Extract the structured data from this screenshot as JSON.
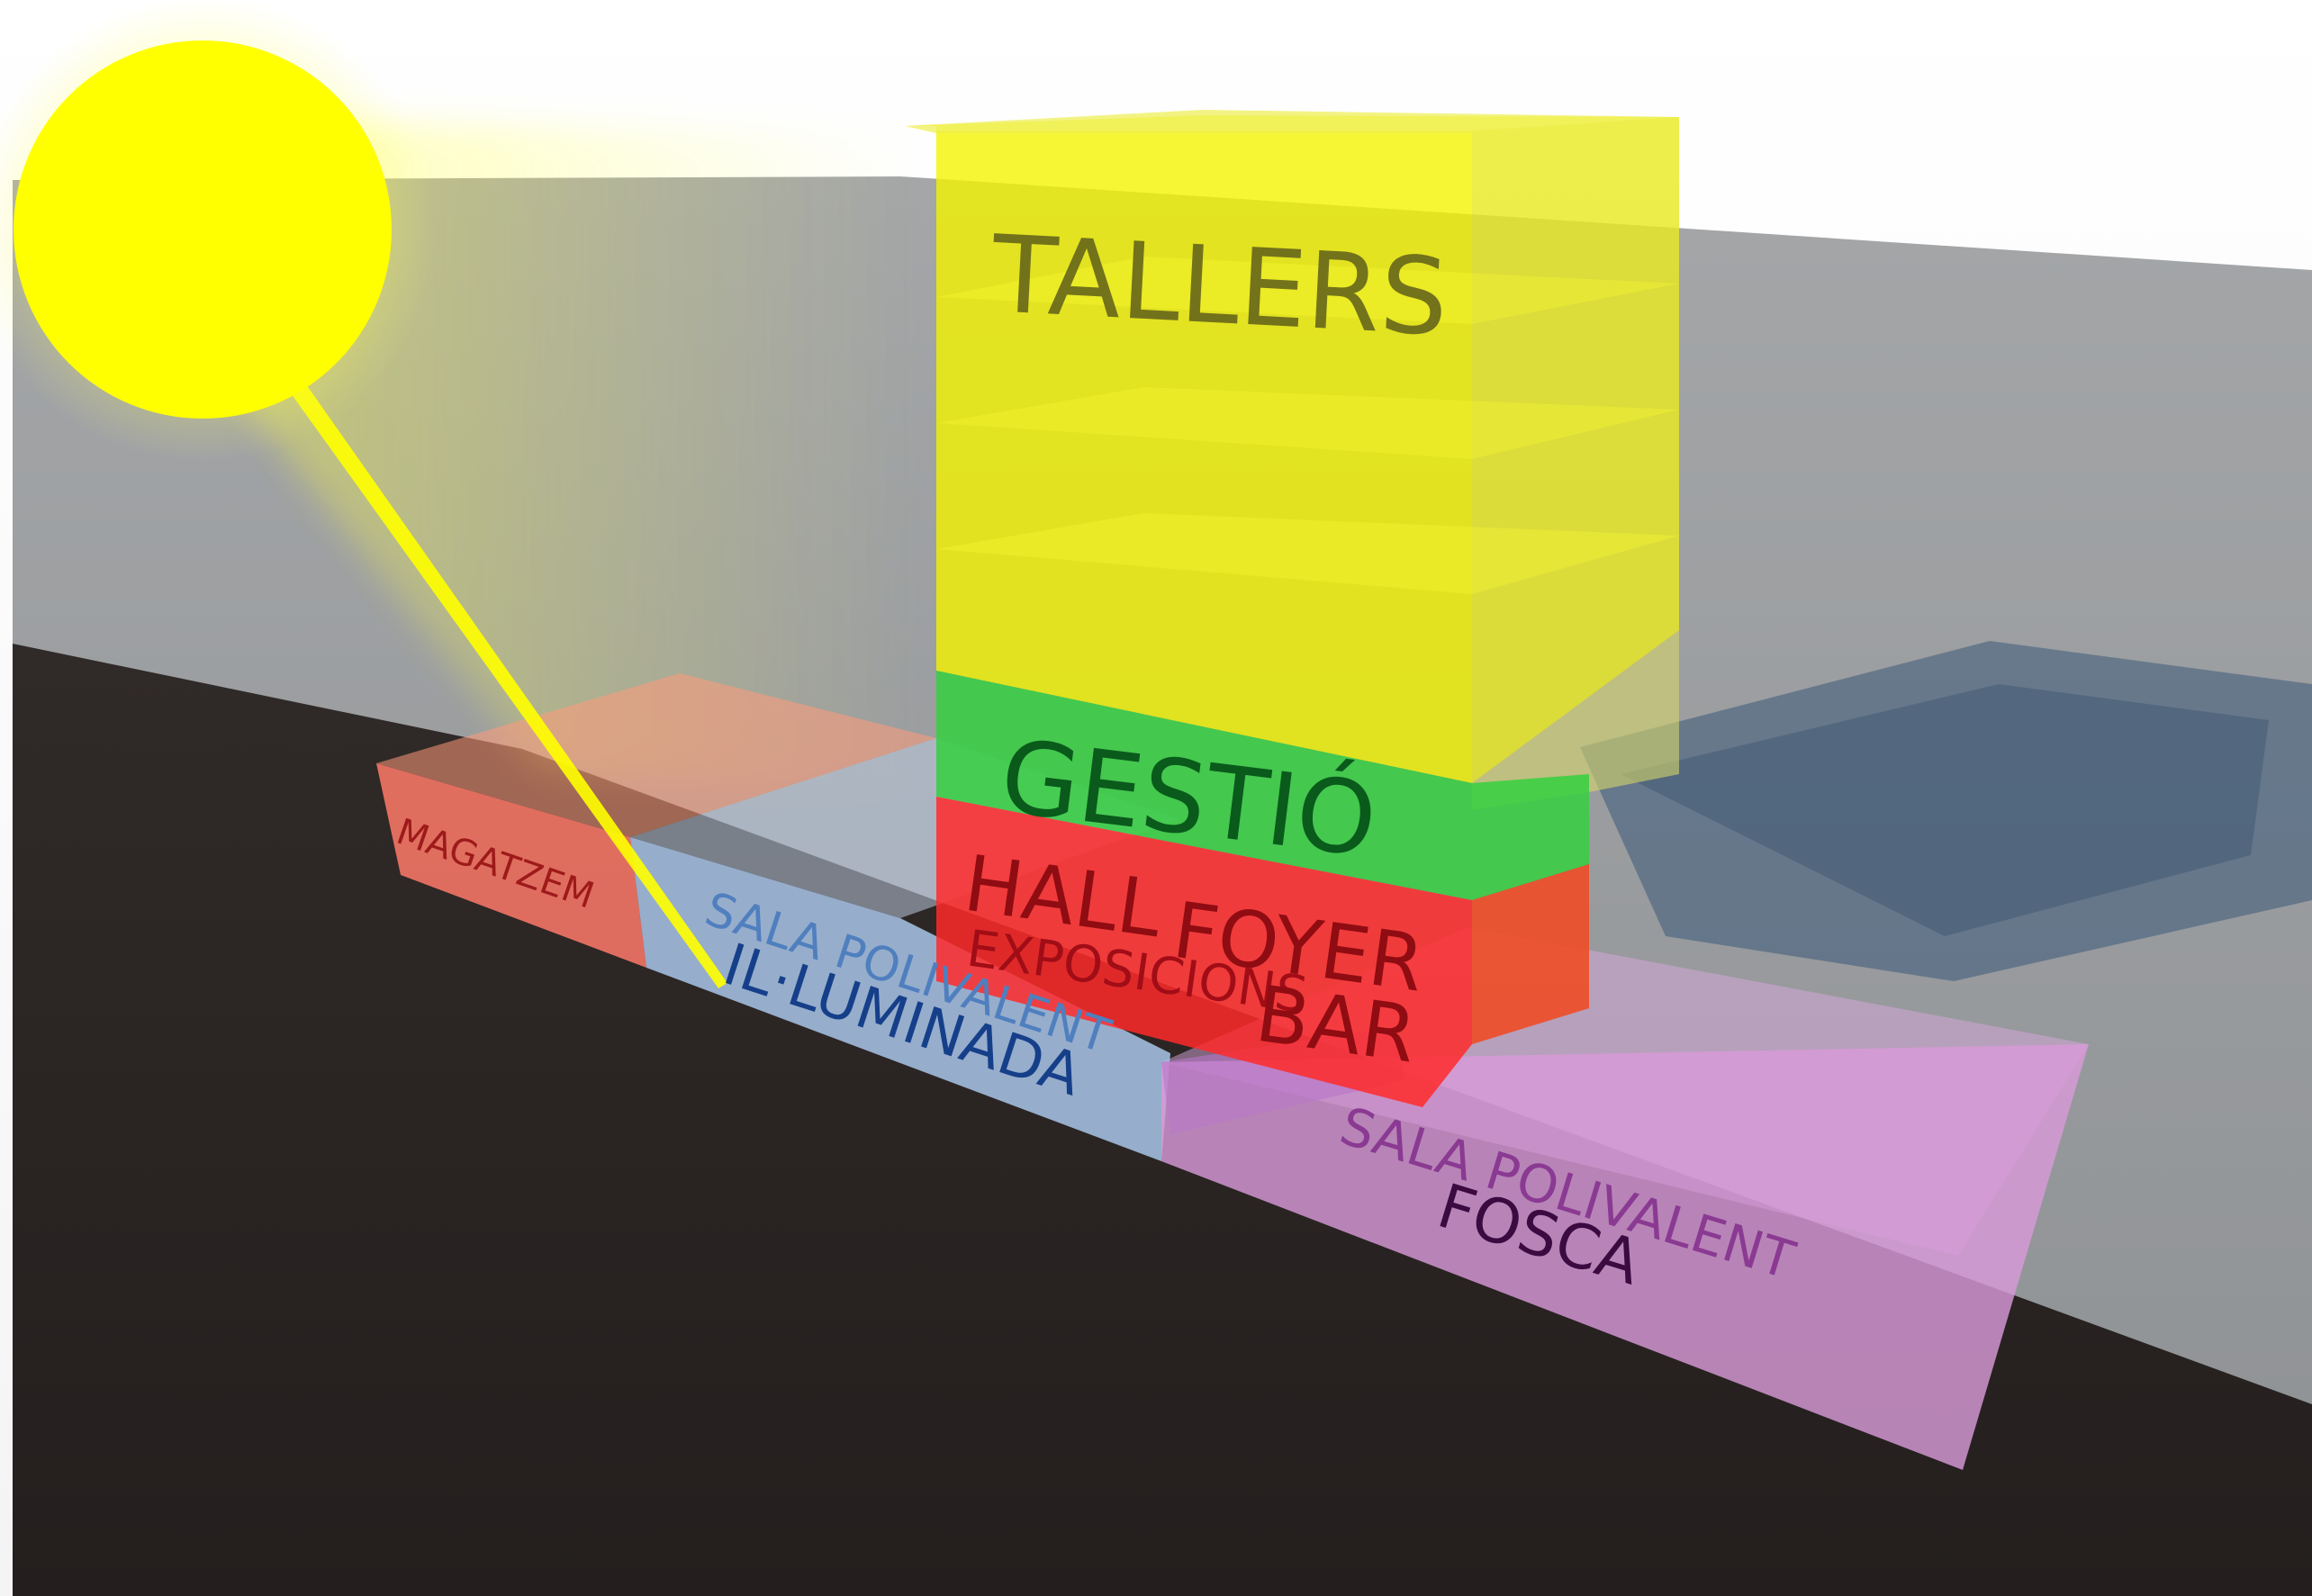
{
  "zones": {
    "tallers": "TALLERS",
    "gestio": "GESTIÓ",
    "hall": "HALL",
    "foyer": "FOYER",
    "exposicions": "EXPOSICIONS",
    "bar": "BAR",
    "magatzem": "MAGATZEM",
    "sala_il_line1": "SALA POLIVALENT",
    "sala_il_line2": "IL·LUMINADA",
    "sala_fo_line1": "SALA POLIVALENT",
    "sala_fo_line2": "FOSCA"
  },
  "colors": {
    "sky": "#ffffff",
    "ground_far": "#9a9c9e",
    "ground_near": "#2a2422",
    "sun": "#ffff00",
    "tallers": "#f2f200",
    "gestio": "#35d040",
    "hall": "#ff2a2a",
    "magatzem": "#ff7a6a",
    "sala_il_luminada": "#a9c6ea",
    "sala_fosca": "#d89ad8",
    "shadow": "#3c5a7a"
  },
  "icons": {
    "sun": "sun-icon",
    "sun_ray": "sun-ray"
  }
}
